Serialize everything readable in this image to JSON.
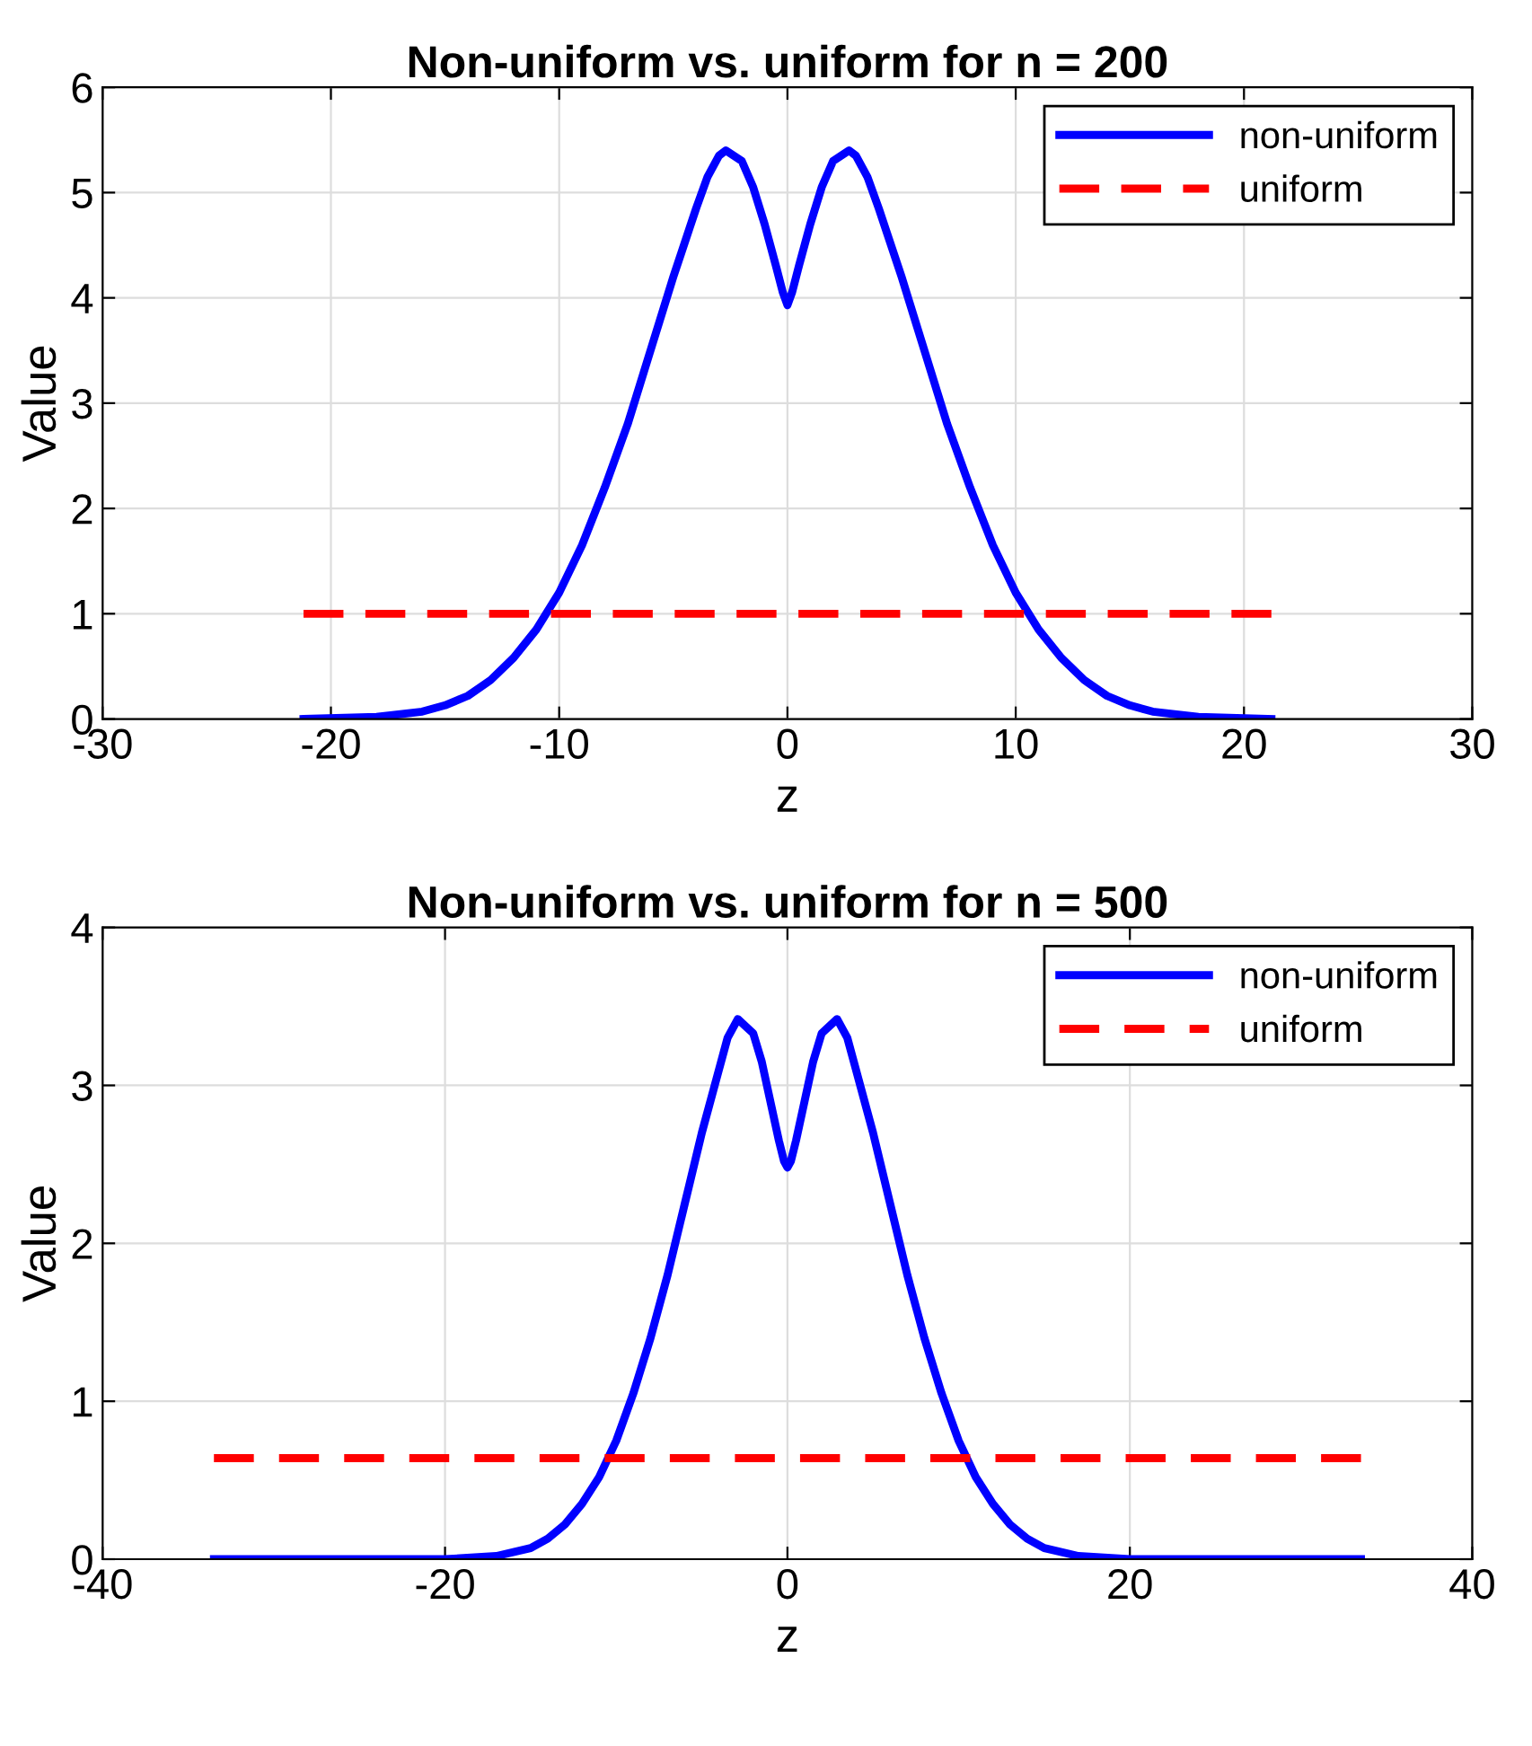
{
  "chart_data": [
    {
      "type": "line",
      "title": "Non-uniform vs. uniform for n = 200",
      "xlabel": "z",
      "ylabel": "Value",
      "xlim": [
        -30,
        30
      ],
      "xticks": [
        -30,
        -20,
        -10,
        0,
        10,
        20,
        30
      ],
      "ylim": [
        0,
        6
      ],
      "yticks": [
        0,
        1,
        2,
        3,
        4,
        5,
        6
      ],
      "grid": true,
      "legend": "top right",
      "series": [
        {
          "name": "non-uniform",
          "color": "#0000ff",
          "line_style": "solid",
          "x": [
            -21.2,
            -18,
            -16,
            -15,
            -14,
            -13,
            -12,
            -11,
            -10,
            -9,
            -8,
            -7,
            -6,
            -5,
            -4,
            -3.5,
            -3,
            -2.7,
            -2,
            -1.5,
            -1,
            -0.5,
            -0.2,
            0,
            0.2,
            0.5,
            1,
            1.5,
            2,
            2.7,
            3,
            3.5,
            4,
            5,
            6,
            7,
            8,
            9,
            10,
            11,
            12,
            13,
            14,
            15,
            16,
            18,
            21.2
          ],
          "values": [
            0,
            0.02,
            0.07,
            0.13,
            0.22,
            0.37,
            0.58,
            0.85,
            1.2,
            1.65,
            2.2,
            2.8,
            3.5,
            4.2,
            4.85,
            5.15,
            5.35,
            5.4,
            5.3,
            5.05,
            4.7,
            4.3,
            4.05,
            3.93,
            4.05,
            4.3,
            4.7,
            5.05,
            5.3,
            5.4,
            5.35,
            5.15,
            4.85,
            4.2,
            3.5,
            2.8,
            2.2,
            1.65,
            1.2,
            0.85,
            0.58,
            0.37,
            0.22,
            0.13,
            0.07,
            0.02,
            0
          ]
        },
        {
          "name": "uniform",
          "color": "#ff0000",
          "line_style": "dashed",
          "x": [
            -21.2,
            21.2
          ],
          "values": [
            1,
            1
          ]
        }
      ]
    },
    {
      "type": "line",
      "title": "Non-uniform vs. uniform for n = 500",
      "xlabel": "z",
      "ylabel": "Value",
      "xlim": [
        -40,
        40
      ],
      "xticks": [
        -40,
        -20,
        0,
        20,
        40
      ],
      "ylim": [
        0,
        4
      ],
      "yticks": [
        0,
        1,
        2,
        3,
        4
      ],
      "grid": true,
      "legend": "top right",
      "series": [
        {
          "name": "non-uniform",
          "color": "#0000ff",
          "line_style": "solid",
          "x": [
            -33.5,
            -20,
            -17,
            -15,
            -14,
            -13,
            -12,
            -11,
            -10,
            -9,
            -8,
            -7,
            -6,
            -5,
            -4,
            -3.5,
            -2.9,
            -2,
            -1.5,
            -1,
            -0.5,
            -0.2,
            0,
            0.2,
            0.5,
            1,
            1.5,
            2,
            2.9,
            3.5,
            4,
            5,
            6,
            7,
            8,
            9,
            10,
            11,
            12,
            13,
            14,
            15,
            17,
            20,
            33.5
          ],
          "values": [
            0,
            0,
            0.02,
            0.07,
            0.13,
            0.22,
            0.35,
            0.52,
            0.75,
            1.05,
            1.4,
            1.8,
            2.25,
            2.7,
            3.1,
            3.3,
            3.42,
            3.33,
            3.15,
            2.9,
            2.65,
            2.52,
            2.48,
            2.52,
            2.65,
            2.9,
            3.15,
            3.33,
            3.42,
            3.3,
            3.1,
            2.7,
            2.25,
            1.8,
            1.4,
            1.05,
            0.75,
            0.52,
            0.35,
            0.22,
            0.13,
            0.07,
            0.02,
            0,
            0
          ]
        },
        {
          "name": "uniform",
          "color": "#ff0000",
          "line_style": "dashed",
          "x": [
            -33.5,
            33.5
          ],
          "values": [
            0.64,
            0.64
          ]
        }
      ]
    }
  ]
}
